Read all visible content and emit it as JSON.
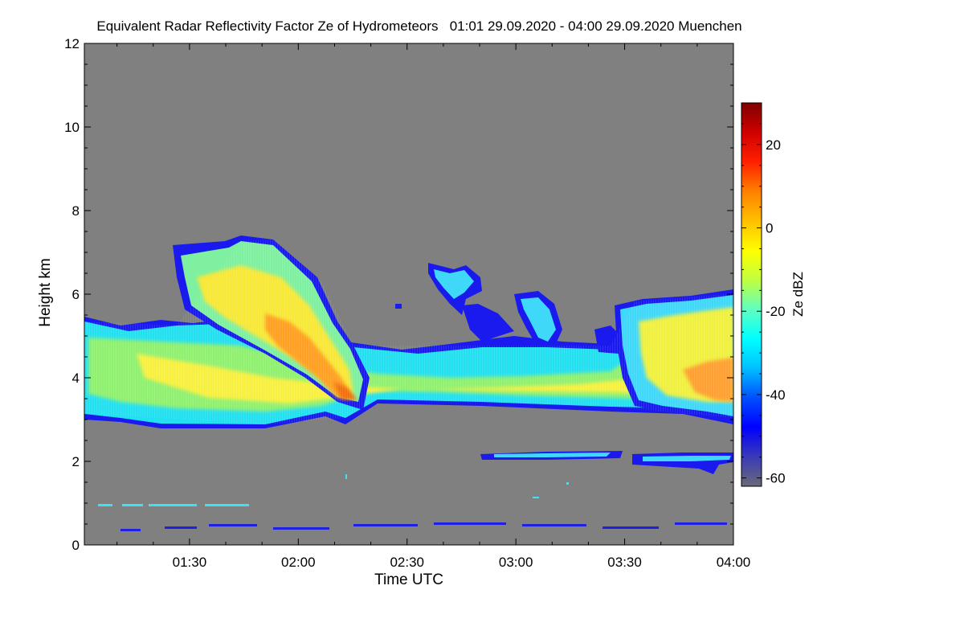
{
  "chart_data": {
    "type": "heatmap",
    "title": "Equivalent Radar Reflectivity Factor Ze of Hydrometeors   01:01 29.09.2020 - 04:00 29.09.2020 Muenchen",
    "xlabel": "Time UTC",
    "ylabel": "Height km",
    "x_range_minutes": [
      61,
      240
    ],
    "x_ticks": [
      {
        "minute": 90,
        "label": "01:30"
      },
      {
        "minute": 120,
        "label": "02:00"
      },
      {
        "minute": 150,
        "label": "02:30"
      },
      {
        "minute": 180,
        "label": "03:00"
      },
      {
        "minute": 210,
        "label": "03:30"
      },
      {
        "minute": 240,
        "label": "04:00"
      }
    ],
    "ylim": [
      0,
      12
    ],
    "y_ticks": [
      0,
      2,
      4,
      6,
      8,
      10,
      12
    ],
    "background_color": "#808080",
    "colorbar": {
      "label": "Ze dBZ",
      "range": [
        -62,
        30
      ],
      "ticks": [
        20,
        0,
        -20,
        -40,
        -60
      ],
      "colormap": [
        "#6a6a7a",
        "#3a3ab8",
        "#0000ff",
        "#0050ff",
        "#00bfff",
        "#00ffff",
        "#60ffc0",
        "#c0ff40",
        "#ffff00",
        "#ffc000",
        "#ff8000",
        "#ff2000",
        "#d00000",
        "#800000"
      ]
    },
    "regions": [
      {
        "name": "main cloud layer",
        "time_start": "01:01",
        "time_end": "04:00",
        "base_km": 2.9,
        "top_km": 5.4,
        "ze_range_dbz": [
          -40,
          5
        ]
      },
      {
        "name": "fall streak tower",
        "time_start": "01:25",
        "time_end": "02:12",
        "base_km": 3.2,
        "top_km": 7.4,
        "ze_max_dbz": 8
      },
      {
        "name": "upper patches",
        "time_start": "02:40",
        "time_end": "03:30",
        "base_km": 4.2,
        "top_km": 6.6,
        "ze_range_dbz": [
          -40,
          -20
        ]
      },
      {
        "name": "late deep cloud",
        "time_start": "03:30",
        "time_end": "04:00",
        "base_km": 3.0,
        "top_km": 6.1,
        "ze_max_dbz": 5
      },
      {
        "name": "low thin layer",
        "time_start": "02:50",
        "time_end": "04:00",
        "base_km": 1.6,
        "top_km": 2.2,
        "ze_range_dbz": [
          -45,
          -25
        ]
      }
    ]
  }
}
